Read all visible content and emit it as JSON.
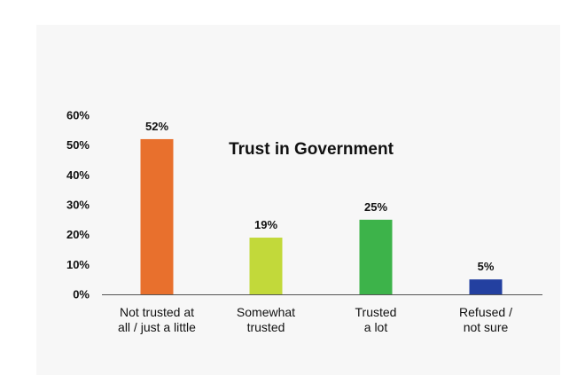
{
  "chart_data": {
    "type": "bar",
    "title": "Trust in Government",
    "categories": [
      [
        "Not trusted at",
        "all / just a little"
      ],
      [
        "Somewhat",
        "trusted"
      ],
      [
        "Trusted",
        "a lot"
      ],
      [
        "Refused /",
        "not sure"
      ]
    ],
    "values": [
      52,
      19,
      25,
      5
    ],
    "data_labels": [
      "52%",
      "19%",
      "25%",
      "5%"
    ],
    "colors": [
      "#e8702d",
      "#c2d93a",
      "#3db34a",
      "#2340a0"
    ],
    "ylim": [
      0,
      60
    ],
    "yticks": [
      0,
      10,
      20,
      30,
      40,
      50,
      60
    ],
    "ytick_labels": [
      "0%",
      "10%",
      "20%",
      "30%",
      "40%",
      "50%",
      "60%"
    ],
    "grid": false,
    "legend": "none",
    "xlabel": "",
    "ylabel": ""
  }
}
